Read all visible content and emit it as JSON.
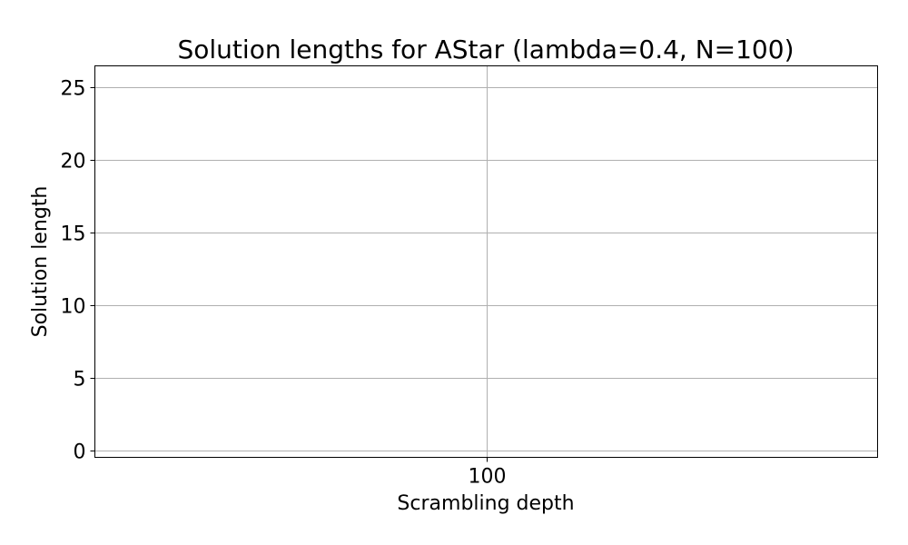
{
  "chart_data": {
    "type": "line",
    "title": "Solution lengths for AStar (lambda=0.4, N=100)",
    "xlabel": "Scrambling depth",
    "ylabel": "Solution length",
    "x_ticks": [
      "100"
    ],
    "y_ticks": [
      0,
      5,
      10,
      15,
      20,
      25
    ],
    "ylim": [
      -0.5,
      26.5
    ],
    "grid": true,
    "series": []
  }
}
